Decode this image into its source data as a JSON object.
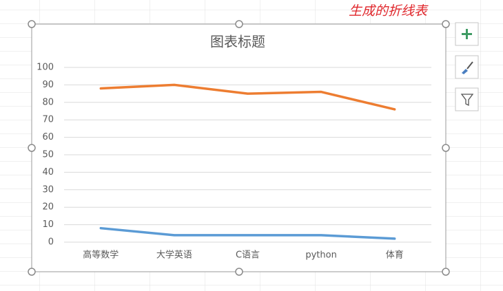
{
  "chart_data": {
    "type": "line",
    "title": "图表标题",
    "annotation": "生成的折线表",
    "categories": [
      "高等数学",
      "大学英语",
      "C语言",
      "python",
      "体育"
    ],
    "series": [
      {
        "color": "#5b9bd5",
        "values": [
          8,
          4,
          4,
          4,
          2
        ]
      },
      {
        "color": "#ed7d31",
        "values": [
          88,
          90,
          85,
          86,
          76
        ]
      }
    ],
    "ylim": [
      0,
      100
    ],
    "yticks": [
      0,
      10,
      20,
      30,
      40,
      50,
      60,
      70,
      80,
      90,
      100
    ],
    "grid": true
  }
}
